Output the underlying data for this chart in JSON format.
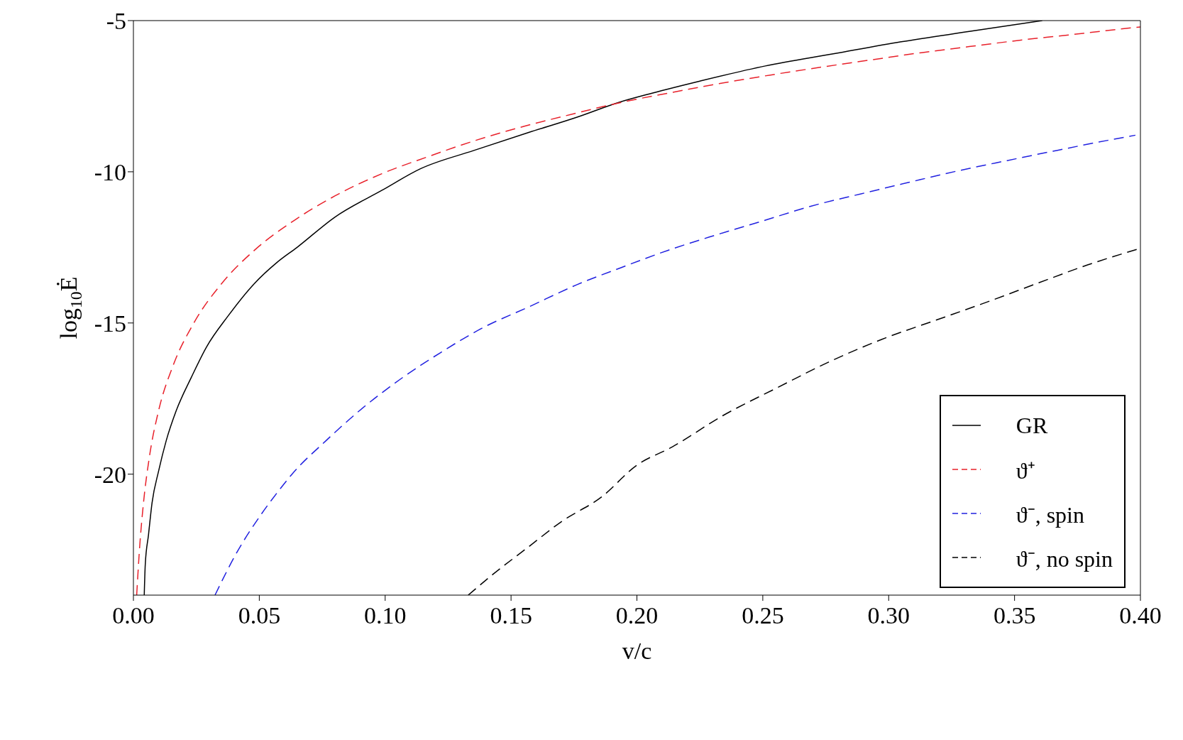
{
  "chart_data": {
    "type": "line",
    "xlabel": "v/c",
    "ylabel": "log$_{10}$Ė",
    "xlim": [
      0,
      0.4
    ],
    "xticks": [
      {
        "value": 0,
        "label": "0.00"
      },
      0.05,
      {
        "value": 0.1,
        "label": "0.10"
      },
      0.15,
      {
        "value": 0.2,
        "label": "0.20"
      },
      0.25,
      {
        "value": 0.3,
        "label": "0.30"
      },
      0.35,
      {
        "value": 0.4,
        "label": "0.40"
      }
    ],
    "ylim": [
      -24,
      -5
    ],
    "yticks": [
      -20,
      -15,
      -10,
      -5
    ],
    "grid": false,
    "legend": "bottom right",
    "marker": "none",
    "series": [
      {
        "name": "GR",
        "color": "#000000",
        "line_style": "solid",
        "x": [
          0.0043,
          0.0047,
          0.006,
          0.0074,
          0.01,
          0.013,
          0.017,
          0.023,
          0.029,
          0.0375,
          0.048,
          0.057,
          0.065,
          0.08,
          0.099,
          0.114,
          0.135,
          0.157,
          0.176,
          0.193,
          0.206,
          0.225,
          0.251,
          0.278,
          0.305,
          0.332,
          0.361
        ],
        "values": [
          -24.0,
          -23.0,
          -22.0,
          -20.95,
          -19.9,
          -18.9,
          -17.9,
          -16.8,
          -15.8,
          -14.78,
          -13.7,
          -13.0,
          -12.5,
          -11.5,
          -10.6,
          -9.9,
          -9.3,
          -8.7,
          -8.2,
          -7.7,
          -7.4,
          -7.0,
          -6.5,
          -6.1,
          -5.7,
          -5.36,
          -5.0
        ]
      },
      {
        "name": "ϑ⁺",
        "color": "#e8202a",
        "line_style": "dashed",
        "x": [
          0.0013,
          0.0024,
          0.004,
          0.0064,
          0.01,
          0.0158,
          0.024,
          0.035,
          0.048,
          0.064,
          0.08,
          0.0985,
          0.117,
          0.136,
          0.155,
          0.174,
          0.194,
          0.213,
          0.233,
          0.253,
          0.274,
          0.293,
          0.313,
          0.332,
          0.352,
          0.372,
          0.392,
          0.4
        ],
        "values": [
          -24.0,
          -22.5,
          -20.95,
          -19.4,
          -17.9,
          -16.4,
          -15.0,
          -13.7,
          -12.6,
          -11.6,
          -10.8,
          -10.07,
          -9.5,
          -8.96,
          -8.5,
          -8.1,
          -7.7,
          -7.39,
          -7.08,
          -6.8,
          -6.53,
          -6.3,
          -6.06,
          -5.86,
          -5.65,
          -5.47,
          -5.28,
          -5.21
        ]
      },
      {
        "name": "ϑ⁻, spin",
        "color": "#2020e0",
        "line_style": "dashed",
        "x": [
          0.0324,
          0.041,
          0.051,
          0.0576,
          0.063,
          0.0764,
          0.0898,
          0.106,
          0.122,
          0.139,
          0.157,
          0.176,
          0.194,
          0.2126,
          0.231,
          0.251,
          0.269,
          0.289,
          0.308,
          0.328,
          0.347,
          0.367,
          0.387,
          0.398
        ],
        "values": [
          -24.0,
          -22.6,
          -21.3,
          -20.56,
          -20.0,
          -18.9,
          -17.9,
          -16.86,
          -15.98,
          -15.15,
          -14.47,
          -13.74,
          -13.16,
          -12.59,
          -12.1,
          -11.6,
          -11.14,
          -10.73,
          -10.35,
          -9.96,
          -9.63,
          -9.29,
          -8.96,
          -8.79
        ]
      },
      {
        "name": "ϑ⁻,  no spin",
        "color": "#000000",
        "line_style": "dashed",
        "x": [
          0.133,
          0.143,
          0.157,
          0.17,
          0.186,
          0.2,
          0.214,
          0.234,
          0.256,
          0.276,
          0.297,
          0.319,
          0.339,
          0.359,
          0.379,
          0.4
        ],
        "values": [
          -24.0,
          -23.3,
          -22.4,
          -21.57,
          -20.75,
          -19.7,
          -19.1,
          -18.07,
          -17.13,
          -16.3,
          -15.55,
          -14.9,
          -14.31,
          -13.69,
          -13.08,
          -12.53
        ]
      }
    ]
  }
}
